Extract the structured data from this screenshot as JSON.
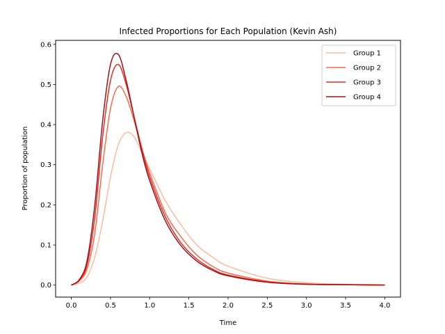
{
  "chart_data": {
    "type": "line",
    "title": "Infected Proportions for Each Population (Kevin Ash)",
    "xlabel": "Time",
    "ylabel": "Proportion of population",
    "xlim": [
      -0.2,
      4.2
    ],
    "ylim": [
      -0.03,
      0.61
    ],
    "xticks": [
      0.0,
      0.5,
      1.0,
      1.5,
      2.0,
      2.5,
      3.0,
      3.5,
      4.0
    ],
    "xtick_labels": [
      "0.0",
      "0.5",
      "1.0",
      "1.5",
      "2.0",
      "2.5",
      "3.0",
      "3.5",
      "4.0"
    ],
    "yticks": [
      0.0,
      0.1,
      0.2,
      0.3,
      0.4,
      0.5,
      0.6
    ],
    "ytick_labels": [
      "0.0",
      "0.1",
      "0.2",
      "0.3",
      "0.4",
      "0.5",
      "0.6"
    ],
    "grid": false,
    "legend_position": "top-right",
    "x": [
      0.0,
      0.1,
      0.2,
      0.3,
      0.4,
      0.5,
      0.6,
      0.7,
      0.8,
      0.9,
      1.0,
      1.2,
      1.4,
      1.6,
      1.8,
      2.0,
      2.5,
      3.0,
      3.5,
      4.0
    ],
    "series": [
      {
        "name": "Group 1",
        "color": "#fcbba1",
        "values": [
          0.0,
          0.005,
          0.02,
          0.07,
          0.16,
          0.27,
          0.35,
          0.38,
          0.37,
          0.33,
          0.29,
          0.21,
          0.15,
          0.1,
          0.07,
          0.047,
          0.017,
          0.006,
          0.002,
          0.001
        ]
      },
      {
        "name": "Group 2",
        "color": "#fb6a4a",
        "values": [
          0.0,
          0.01,
          0.04,
          0.13,
          0.3,
          0.44,
          0.495,
          0.47,
          0.41,
          0.34,
          0.28,
          0.18,
          0.12,
          0.075,
          0.047,
          0.03,
          0.01,
          0.003,
          0.001,
          0.0
        ]
      },
      {
        "name": "Group 3",
        "color": "#de2d26",
        "values": [
          0.0,
          0.012,
          0.05,
          0.17,
          0.37,
          0.51,
          0.55,
          0.5,
          0.42,
          0.34,
          0.27,
          0.17,
          0.105,
          0.065,
          0.04,
          0.025,
          0.008,
          0.002,
          0.001,
          0.0
        ]
      },
      {
        "name": "Group 4",
        "color": "#a50f15",
        "values": [
          0.0,
          0.013,
          0.06,
          0.2,
          0.41,
          0.55,
          0.575,
          0.51,
          0.42,
          0.33,
          0.26,
          0.16,
          0.098,
          0.06,
          0.037,
          0.023,
          0.007,
          0.002,
          0.001,
          0.0
        ]
      }
    ]
  }
}
